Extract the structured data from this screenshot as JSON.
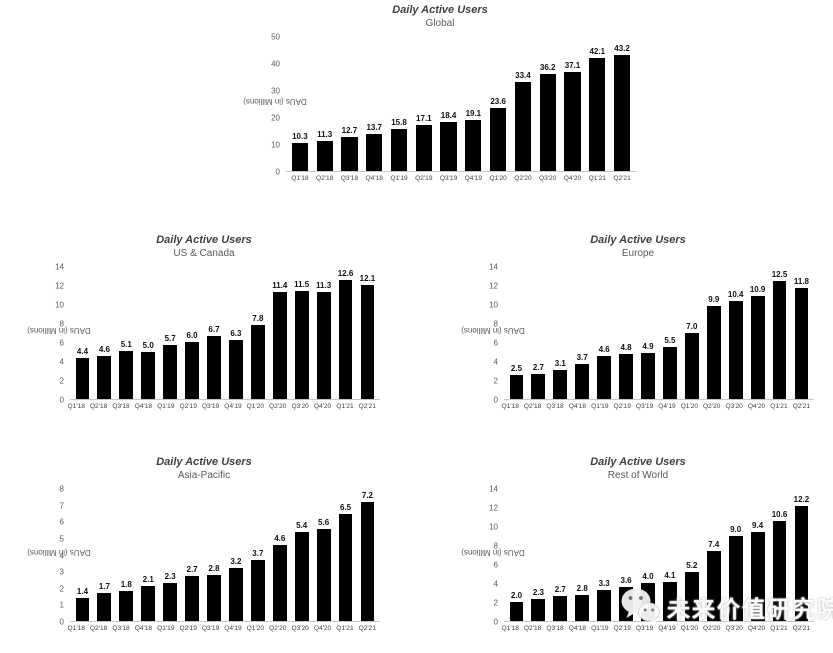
{
  "watermark": {
    "text": "未来价值研究院",
    "logo": "wechat-icon"
  },
  "chart_data": [
    {
      "type": "bar",
      "title": "Daily Active Users",
      "subtitle": "Global",
      "ylabel": "DAUs (in Millions)",
      "categories": [
        "Q1'18",
        "Q2'18",
        "Q3'18",
        "Q4'18",
        "Q1'19",
        "Q2'19",
        "Q3'19",
        "Q4'19",
        "Q1'20",
        "Q2'20",
        "Q3'20",
        "Q4'20",
        "Q1'21",
        "Q2'21"
      ],
      "values": [
        10.3,
        11.3,
        12.7,
        13.7,
        15.8,
        17.1,
        18.4,
        19.1,
        23.6,
        33.4,
        36.2,
        37.1,
        42.1,
        43.2
      ],
      "ylim": [
        0,
        50
      ],
      "ytick_step": 10,
      "bar_color": "#000000",
      "grid": false,
      "legend": "none"
    },
    {
      "type": "bar",
      "title": "Daily Active Users",
      "subtitle": "US & Canada",
      "ylabel": "DAUs (in Millions)",
      "categories": [
        "Q1'18",
        "Q2'18",
        "Q3'18",
        "Q4'18",
        "Q1'19",
        "Q2'19",
        "Q3'19",
        "Q4'19",
        "Q1'20",
        "Q2'20",
        "Q3'20",
        "Q4'20",
        "Q1'21",
        "Q2'21"
      ],
      "values": [
        4.4,
        4.6,
        5.1,
        5.0,
        5.7,
        6.0,
        6.7,
        6.3,
        7.8,
        11.4,
        11.5,
        11.3,
        12.6,
        12.1
      ],
      "ylim": [
        0,
        14
      ],
      "ytick_step": 2,
      "bar_color": "#000000",
      "grid": false,
      "legend": "none"
    },
    {
      "type": "bar",
      "title": "Daily Active Users",
      "subtitle": "Europe",
      "ylabel": "DAUs (in Millions)",
      "categories": [
        "Q1'18",
        "Q2'18",
        "Q3'18",
        "Q4'18",
        "Q1'19",
        "Q2'19",
        "Q3'19",
        "Q4'19",
        "Q1'20",
        "Q2'20",
        "Q3'20",
        "Q4'20",
        "Q1'21",
        "Q2'21"
      ],
      "values": [
        2.5,
        2.7,
        3.1,
        3.7,
        4.6,
        4.8,
        4.9,
        5.5,
        7.0,
        9.9,
        10.4,
        10.9,
        12.5,
        11.8
      ],
      "ylim": [
        0,
        14
      ],
      "ytick_step": 2,
      "bar_color": "#000000",
      "grid": false,
      "legend": "none"
    },
    {
      "type": "bar",
      "title": "Daily Active Users",
      "subtitle": "Asia-Pacific",
      "ylabel": "DAUs (in Millions)",
      "categories": [
        "Q1'18",
        "Q2'18",
        "Q3'18",
        "Q4'18",
        "Q1'19",
        "Q2'19",
        "Q3'19",
        "Q4'19",
        "Q1'20",
        "Q2'20",
        "Q3'20",
        "Q4'20",
        "Q1'21",
        "Q2'21"
      ],
      "values": [
        1.4,
        1.7,
        1.8,
        2.1,
        2.3,
        2.7,
        2.8,
        3.2,
        3.7,
        4.6,
        5.4,
        5.6,
        6.5,
        7.2
      ],
      "ylim": [
        0,
        8
      ],
      "ytick_step": 1,
      "bar_color": "#000000",
      "grid": false,
      "legend": "none"
    },
    {
      "type": "bar",
      "title": "Daily Active Users",
      "subtitle": "Rest of World",
      "ylabel": "DAUs (in Millions)",
      "categories": [
        "Q1'18",
        "Q2'18",
        "Q3'18",
        "Q4'18",
        "Q1'19",
        "Q2'19",
        "Q3'19",
        "Q4'19",
        "Q1'20",
        "Q2'20",
        "Q3'20",
        "Q4'20",
        "Q1'21",
        "Q2'21"
      ],
      "values": [
        2.0,
        2.3,
        2.7,
        2.8,
        3.3,
        3.6,
        4.0,
        4.1,
        5.2,
        7.4,
        9.0,
        9.4,
        10.6,
        12.2
      ],
      "ylim": [
        0,
        14
      ],
      "ytick_step": 2,
      "bar_color": "#000000",
      "grid": false,
      "legend": "none"
    }
  ]
}
